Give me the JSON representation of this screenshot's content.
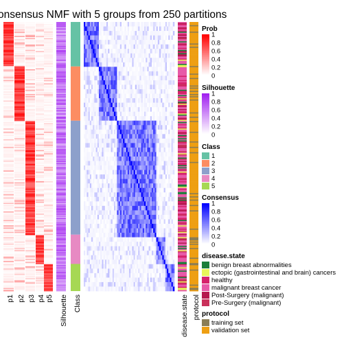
{
  "chart_data": {
    "type": "heatmap",
    "title": "onsensus NMF with 5 groups from 250 partitions",
    "column_labels": [
      "p1",
      "p2",
      "p3",
      "p4",
      "p5",
      "Silhouette",
      "Class",
      "disease.state",
      "protocol"
    ],
    "class_groups": [
      {
        "class": "1",
        "color": "#66C2A5",
        "size": 0.205
      },
      {
        "class": "2",
        "color": "#FC8D62",
        "size": 0.25
      },
      {
        "class": "3",
        "color": "#8DA0CB",
        "size": 0.525
      },
      {
        "class": "4",
        "color": "#E78AC3",
        "size": 0.135
      },
      {
        "class": "5",
        "color": "#A6D854",
        "size": 0.125
      }
    ],
    "legends": {
      "prob": {
        "title": "Prob",
        "ticks": [
          "1",
          "0.8",
          "0.6",
          "0.4",
          "0.2",
          "0"
        ],
        "color": "#FF0000"
      },
      "silhouette": {
        "title": "Silhouette",
        "ticks": [
          "1",
          "0.8",
          "0.6",
          "0.4",
          "0.2",
          "0"
        ],
        "color": "#A020F0"
      },
      "class": {
        "title": "Class",
        "items": [
          {
            "label": "1",
            "color": "#66C2A5"
          },
          {
            "label": "2",
            "color": "#FC8D62"
          },
          {
            "label": "3",
            "color": "#8DA0CB"
          },
          {
            "label": "4",
            "color": "#E78AC3"
          },
          {
            "label": "5",
            "color": "#A6D854"
          }
        ]
      },
      "consensus": {
        "title": "Consensus",
        "ticks": [
          "1",
          "0.8",
          "0.6",
          "0.4",
          "0.2",
          "0"
        ],
        "color": "#0000FF"
      },
      "disease_state": {
        "title": "disease.state",
        "items": [
          {
            "label": "benign breast abnormalities",
            "color": "#1B7F3A"
          },
          {
            "label": "ectopic (gastrointestinal and brain) cancers",
            "color": "#E7F55A"
          },
          {
            "label": "healthy",
            "color": "#D6226B"
          },
          {
            "label": "malignant breast cancer",
            "color": "#E75AA8"
          },
          {
            "label": "Post-Surgery (malignant)",
            "color": "#B5194F"
          },
          {
            "label": "Pre-Surgery (malignant)",
            "color": "#C9305A"
          }
        ]
      },
      "protocol": {
        "title": "protocol",
        "items": [
          {
            "label": "training set",
            "color": "#8B7D55"
          },
          {
            "label": "validation set",
            "color": "#EE9F13"
          }
        ]
      }
    }
  }
}
